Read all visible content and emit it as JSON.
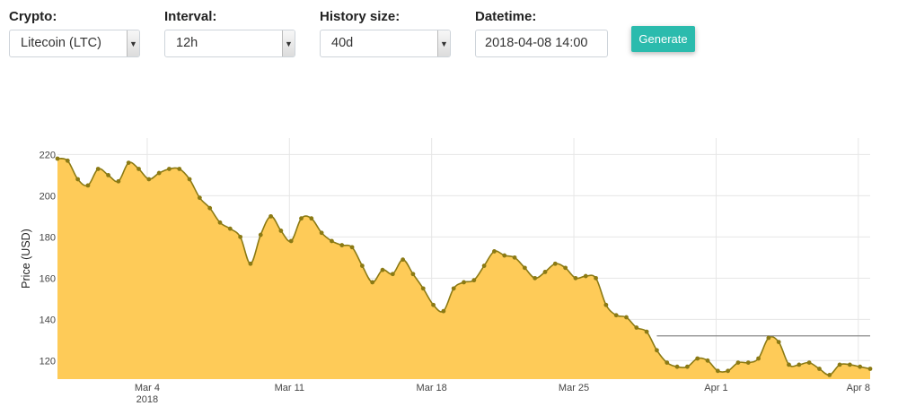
{
  "controls": {
    "crypto": {
      "label": "Crypto:",
      "value": "Litecoin (LTC)"
    },
    "interval": {
      "label": "Interval:",
      "value": "12h"
    },
    "history": {
      "label": "History size:",
      "value": "40d"
    },
    "datetime": {
      "label": "Datetime:",
      "value": "2018-04-08 14:00"
    },
    "generate_label": "Generate"
  },
  "colors": {
    "accent": "#2bbbad",
    "fill": "#fecb58",
    "line": "#8b7a14",
    "reference_line": "#888888"
  },
  "chart_data": {
    "type": "area",
    "ylabel": "Price (USD)",
    "xlabel": "",
    "ylim": [
      111,
      228
    ],
    "yticks": [
      120,
      140,
      160,
      180,
      200,
      220
    ],
    "grid": true,
    "x_range": [
      "2018-02-27 14:00",
      "2018-04-08 14:00"
    ],
    "x_ticks": [
      {
        "date": "2018-03-04",
        "label": "Mar 4",
        "sub": "2018"
      },
      {
        "date": "2018-03-11",
        "label": "Mar 11",
        "sub": ""
      },
      {
        "date": "2018-03-18",
        "label": "Mar 18",
        "sub": ""
      },
      {
        "date": "2018-03-25",
        "label": "Mar 25",
        "sub": ""
      },
      {
        "date": "2018-04-01",
        "label": "Apr 1",
        "sub": ""
      },
      {
        "date": "2018-04-08",
        "label": "Apr 8",
        "sub": ""
      }
    ],
    "x": [
      "2018-02-27 14:00",
      "2018-02-28 02:00",
      "2018-02-28 14:00",
      "2018-03-01 02:00",
      "2018-03-01 14:00",
      "2018-03-02 02:00",
      "2018-03-02 14:00",
      "2018-03-03 02:00",
      "2018-03-03 14:00",
      "2018-03-04 02:00",
      "2018-03-04 14:00",
      "2018-03-05 02:00",
      "2018-03-05 14:00",
      "2018-03-06 02:00",
      "2018-03-06 14:00",
      "2018-03-07 02:00",
      "2018-03-07 14:00",
      "2018-03-08 02:00",
      "2018-03-08 14:00",
      "2018-03-09 02:00",
      "2018-03-09 14:00",
      "2018-03-10 02:00",
      "2018-03-10 14:00",
      "2018-03-11 02:00",
      "2018-03-11 14:00",
      "2018-03-12 02:00",
      "2018-03-12 14:00",
      "2018-03-13 02:00",
      "2018-03-13 14:00",
      "2018-03-14 02:00",
      "2018-03-14 14:00",
      "2018-03-15 02:00",
      "2018-03-15 14:00",
      "2018-03-16 02:00",
      "2018-03-16 14:00",
      "2018-03-17 02:00",
      "2018-03-17 14:00",
      "2018-03-18 02:00",
      "2018-03-18 14:00",
      "2018-03-19 02:00",
      "2018-03-19 14:00",
      "2018-03-20 02:00",
      "2018-03-20 14:00",
      "2018-03-21 02:00",
      "2018-03-21 14:00",
      "2018-03-22 02:00",
      "2018-03-22 14:00",
      "2018-03-23 02:00",
      "2018-03-23 14:00",
      "2018-03-24 02:00",
      "2018-03-24 14:00",
      "2018-03-25 02:00",
      "2018-03-25 14:00",
      "2018-03-26 02:00",
      "2018-03-26 14:00",
      "2018-03-27 02:00",
      "2018-03-27 14:00",
      "2018-03-28 02:00",
      "2018-03-28 14:00",
      "2018-03-29 02:00",
      "2018-03-29 14:00",
      "2018-03-30 02:00",
      "2018-03-30 14:00",
      "2018-03-31 02:00",
      "2018-03-31 14:00",
      "2018-04-01 02:00",
      "2018-04-01 14:00",
      "2018-04-02 02:00",
      "2018-04-02 14:00",
      "2018-04-03 02:00",
      "2018-04-03 14:00",
      "2018-04-04 02:00",
      "2018-04-04 14:00",
      "2018-04-05 02:00",
      "2018-04-05 14:00",
      "2018-04-06 02:00",
      "2018-04-06 14:00",
      "2018-04-07 02:00",
      "2018-04-07 14:00",
      "2018-04-08 02:00",
      "2018-04-08 14:00"
    ],
    "series": [
      {
        "values": [
          218,
          217,
          208,
          205,
          213,
          210,
          207,
          216,
          213,
          208,
          211,
          213,
          213,
          208,
          199,
          194,
          187,
          184,
          180,
          167,
          181,
          190,
          183,
          178,
          189,
          189,
          182,
          178,
          176,
          175,
          166,
          158,
          164,
          162,
          169,
          162,
          155,
          147,
          144,
          155,
          158,
          159,
          166,
          173,
          171,
          170,
          165,
          160,
          163,
          167,
          165,
          160,
          161,
          160,
          147,
          142,
          141,
          136,
          134,
          125,
          119,
          117,
          117,
          121,
          120,
          115,
          115,
          119,
          119,
          121,
          131,
          129,
          118,
          118,
          119,
          116,
          113,
          118,
          118,
          117,
          116
        ]
      }
    ],
    "reference_line": {
      "y": 132,
      "x_start": "2018-03-29 02:00",
      "x_end": "2018-04-08 14:00"
    }
  }
}
